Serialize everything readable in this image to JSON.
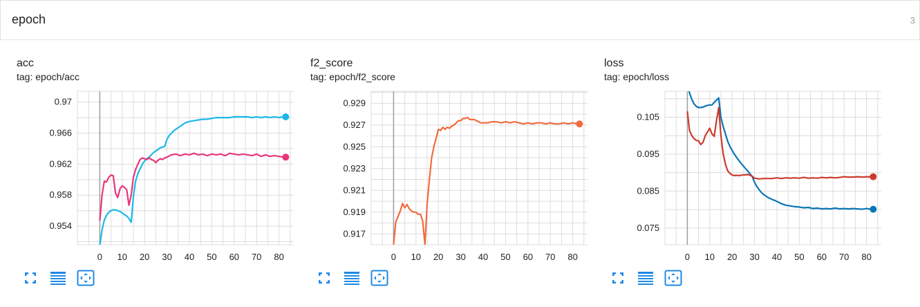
{
  "header": {
    "title": "epoch",
    "count": "3"
  },
  "charts": [
    {
      "title": "acc",
      "tag": "tag: epoch/acc",
      "y_ticks": [
        "0.97",
        "0.966",
        "0.962",
        "0.958",
        "0.954"
      ],
      "x_ticks": [
        "0",
        "10",
        "20",
        "30",
        "40",
        "50",
        "60",
        "70",
        "80"
      ]
    },
    {
      "title": "f2_score",
      "tag": "tag: epoch/f2_score",
      "y_ticks": [
        "0.929",
        "0.927",
        "0.925",
        "0.923",
        "0.921",
        "0.919",
        "0.917"
      ],
      "x_ticks": [
        "0",
        "10",
        "20",
        "30",
        "40",
        "50",
        "60",
        "70",
        "80"
      ]
    },
    {
      "title": "loss",
      "tag": "tag: epoch/loss",
      "y_ticks": [
        "0.105",
        "0.095",
        "0.085",
        "0.075"
      ],
      "x_ticks": [
        "0",
        "10",
        "20",
        "30",
        "40",
        "50",
        "60",
        "70",
        "80"
      ]
    }
  ],
  "toolbar": {
    "fullscreen_icon": "fullscreen-icon",
    "legend_icon": "list-lines-icon",
    "fit_icon": "fit-domain-icon"
  },
  "chart_data": [
    {
      "type": "line",
      "title": "acc",
      "xlim": [
        -10,
        90
      ],
      "ylim": [
        0.9516,
        0.9714
      ],
      "grid": true,
      "series": [
        {
          "color": "#1ab8e8",
          "x": [
            0,
            1,
            2,
            3,
            4,
            5,
            6,
            7,
            8,
            9,
            10,
            11,
            12,
            13,
            14,
            15,
            16,
            17,
            18,
            19,
            20,
            21,
            22,
            23,
            24,
            25,
            26,
            27,
            28,
            29,
            30,
            31,
            32,
            33,
            34,
            35,
            36,
            37,
            38,
            39,
            40,
            42,
            44,
            46,
            48,
            50,
            52,
            54,
            56,
            58,
            60,
            62,
            64,
            66,
            68,
            70,
            72,
            74,
            76,
            78,
            80,
            82,
            83
          ],
          "y": [
            0.9515,
            0.9535,
            0.9548,
            0.9554,
            0.9558,
            0.956,
            0.9561,
            0.9561,
            0.956,
            0.9559,
            0.9557,
            0.9555,
            0.9553,
            0.955,
            0.9545,
            0.9578,
            0.9598,
            0.9608,
            0.9614,
            0.962,
            0.9624,
            0.9627,
            0.9629,
            0.9632,
            0.9635,
            0.9637,
            0.9639,
            0.9641,
            0.9642,
            0.9643,
            0.9652,
            0.9657,
            0.966,
            0.9663,
            0.9665,
            0.9667,
            0.9669,
            0.9671,
            0.9673,
            0.9674,
            0.9675,
            0.9676,
            0.9677,
            0.9678,
            0.9678,
            0.9679,
            0.968,
            0.968,
            0.968,
            0.968,
            0.9681,
            0.9681,
            0.9681,
            0.9681,
            0.968,
            0.9681,
            0.968,
            0.9681,
            0.968,
            0.9681,
            0.968,
            0.9681,
            0.9681
          ]
        },
        {
          "color": "#e8357a",
          "x": [
            0,
            1,
            2,
            3,
            4,
            5,
            6,
            7,
            8,
            9,
            10,
            11,
            12,
            13,
            14,
            15,
            16,
            17,
            18,
            19,
            20,
            21,
            22,
            23,
            24,
            25,
            26,
            27,
            28,
            29,
            30,
            32,
            34,
            36,
            38,
            40,
            42,
            44,
            46,
            48,
            50,
            52,
            54,
            56,
            58,
            60,
            62,
            64,
            66,
            68,
            70,
            72,
            74,
            76,
            78,
            80,
            82,
            83
          ],
          "y": [
            0.9547,
            0.958,
            0.9598,
            0.9597,
            0.9603,
            0.9606,
            0.9605,
            0.9583,
            0.9577,
            0.9588,
            0.9592,
            0.959,
            0.9587,
            0.9567,
            0.958,
            0.9603,
            0.9613,
            0.962,
            0.9626,
            0.9628,
            0.9627,
            0.9626,
            0.9628,
            0.9626,
            0.9625,
            0.9622,
            0.9625,
            0.9627,
            0.9626,
            0.9628,
            0.9629,
            0.9632,
            0.9633,
            0.9631,
            0.9633,
            0.9632,
            0.9634,
            0.9632,
            0.9633,
            0.9631,
            0.9633,
            0.9632,
            0.9633,
            0.9631,
            0.9634,
            0.9633,
            0.9632,
            0.9633,
            0.9632,
            0.9631,
            0.9633,
            0.963,
            0.9632,
            0.963,
            0.9631,
            0.963,
            0.9629,
            0.9629
          ]
        }
      ]
    },
    {
      "type": "line",
      "title": "f2_score",
      "xlim": [
        -10,
        90
      ],
      "ylim": [
        0.916,
        0.9301
      ],
      "grid": true,
      "series": [
        {
          "color": "#f26a3e",
          "x": [
            0,
            1,
            2,
            3,
            4,
            5,
            6,
            7,
            8,
            9,
            10,
            11,
            12,
            13,
            14,
            15,
            16,
            17,
            18,
            19,
            20,
            21,
            22,
            23,
            24,
            25,
            26,
            27,
            28,
            29,
            30,
            31,
            32,
            33,
            34,
            35,
            36,
            37,
            38,
            39,
            40,
            42,
            44,
            46,
            48,
            50,
            52,
            54,
            56,
            58,
            60,
            62,
            64,
            66,
            68,
            70,
            72,
            74,
            76,
            78,
            80,
            82,
            83
          ],
          "y": [
            0.916,
            0.9181,
            0.9186,
            0.9191,
            0.9198,
            0.9194,
            0.9197,
            0.9193,
            0.9191,
            0.919,
            0.919,
            0.9188,
            0.9188,
            0.9182,
            0.916,
            0.9198,
            0.922,
            0.924,
            0.925,
            0.9258,
            0.9266,
            0.9265,
            0.9268,
            0.9266,
            0.9268,
            0.9267,
            0.9269,
            0.927,
            0.9272,
            0.9274,
            0.9274,
            0.9276,
            0.9276,
            0.9277,
            0.9275,
            0.9275,
            0.9275,
            0.9274,
            0.9273,
            0.9272,
            0.9272,
            0.9272,
            0.9273,
            0.9273,
            0.9272,
            0.9273,
            0.9272,
            0.9273,
            0.9272,
            0.9271,
            0.9272,
            0.9271,
            0.9272,
            0.9272,
            0.9271,
            0.9272,
            0.9271,
            0.9271,
            0.9272,
            0.9271,
            0.9272,
            0.9271,
            0.9271
          ]
        }
      ]
    },
    {
      "type": "line",
      "title": "loss",
      "xlim": [
        -10,
        90
      ],
      "ylim": [
        0.0705,
        0.112
      ],
      "grid": true,
      "series": [
        {
          "color": "#0a75b5",
          "x": [
            0,
            1,
            2,
            3,
            4,
            5,
            6,
            7,
            8,
            9,
            10,
            11,
            12,
            13,
            14,
            15,
            16,
            17,
            18,
            19,
            20,
            21,
            22,
            23,
            24,
            25,
            26,
            27,
            28,
            29,
            30,
            31,
            32,
            33,
            34,
            35,
            36,
            37,
            38,
            39,
            40,
            42,
            44,
            46,
            48,
            50,
            52,
            54,
            56,
            58,
            60,
            62,
            64,
            66,
            68,
            70,
            72,
            74,
            76,
            78,
            80,
            82,
            83
          ],
          "y": [
            0.114,
            0.1115,
            0.1098,
            0.1086,
            0.1079,
            0.1076,
            0.1076,
            0.1077,
            0.108,
            0.1082,
            0.1083,
            0.1083,
            0.109,
            0.1096,
            0.1102,
            0.1049,
            0.1025,
            0.1005,
            0.0985,
            0.0971,
            0.096,
            0.095,
            0.0941,
            0.0933,
            0.0925,
            0.0918,
            0.0911,
            0.0904,
            0.0897,
            0.0889,
            0.0874,
            0.0863,
            0.0854,
            0.0847,
            0.0841,
            0.0837,
            0.0833,
            0.083,
            0.0827,
            0.0825,
            0.0822,
            0.0816,
            0.0812,
            0.081,
            0.0808,
            0.0807,
            0.0805,
            0.0806,
            0.0803,
            0.0804,
            0.0802,
            0.0803,
            0.0802,
            0.0804,
            0.0802,
            0.0803,
            0.0802,
            0.0803,
            0.0802,
            0.0801,
            0.0803,
            0.0801,
            0.0801
          ]
        },
        {
          "color": "#cc3a2b",
          "x": [
            0,
            1,
            2,
            3,
            4,
            5,
            6,
            7,
            8,
            9,
            10,
            11,
            12,
            13,
            14,
            15,
            16,
            17,
            18,
            19,
            20,
            21,
            22,
            23,
            24,
            25,
            26,
            27,
            28,
            29,
            30,
            31,
            32,
            34,
            36,
            38,
            40,
            42,
            44,
            46,
            48,
            50,
            52,
            54,
            56,
            58,
            60,
            62,
            64,
            66,
            68,
            70,
            72,
            74,
            76,
            78,
            80,
            82,
            83
          ],
          "y": [
            0.1066,
            0.1013,
            0.1,
            0.0992,
            0.0987,
            0.0986,
            0.0976,
            0.0982,
            0.1,
            0.101,
            0.102,
            0.1005,
            0.0998,
            0.104,
            0.1076,
            0.1,
            0.0951,
            0.0923,
            0.0905,
            0.0898,
            0.0894,
            0.0892,
            0.0893,
            0.0892,
            0.0893,
            0.0894,
            0.0894,
            0.0895,
            0.0893,
            0.089,
            0.0885,
            0.0884,
            0.0883,
            0.0884,
            0.0884,
            0.0884,
            0.0886,
            0.0884,
            0.0886,
            0.0885,
            0.0886,
            0.0885,
            0.0887,
            0.0885,
            0.0886,
            0.0885,
            0.0887,
            0.0886,
            0.0887,
            0.0886,
            0.0887,
            0.0889,
            0.0888,
            0.0888,
            0.0889,
            0.0888,
            0.0889,
            0.0888,
            0.0889
          ]
        }
      ]
    }
  ]
}
